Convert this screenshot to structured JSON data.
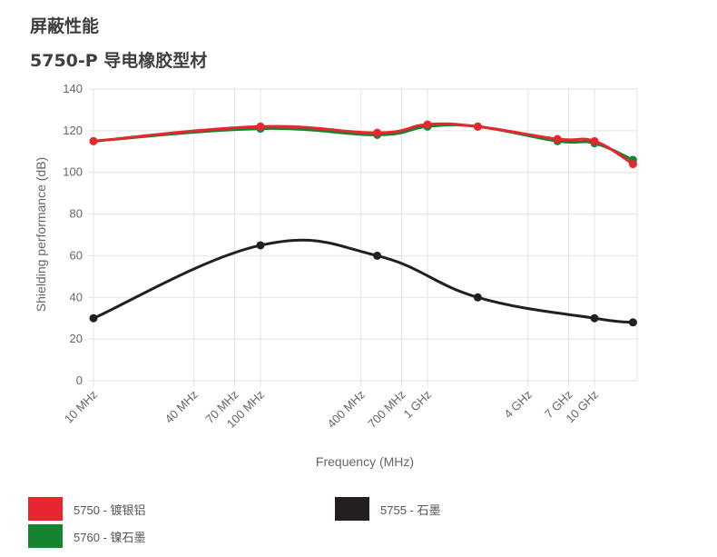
{
  "page": {
    "heading": "屏蔽性能",
    "subheading": "5750-P 导电橡胶型材"
  },
  "chart_data": {
    "type": "line",
    "title": "",
    "xlabel": "Frequency (MHz)",
    "ylabel": "Shielding performance (dB)",
    "x_scale": "log",
    "x_ticks": [
      {
        "value": 10,
        "label": "10 MHz"
      },
      {
        "value": 40,
        "label": "40 MHz"
      },
      {
        "value": 70,
        "label": "70 MHz"
      },
      {
        "value": 100,
        "label": "100 MHz"
      },
      {
        "value": 400,
        "label": "400 MHz"
      },
      {
        "value": 700,
        "label": "700 MHz"
      },
      {
        "value": 1000,
        "label": "1 GHz"
      },
      {
        "value": 4000,
        "label": "4 GHz"
      },
      {
        "value": 7000,
        "label": "7 GHz"
      },
      {
        "value": 10000,
        "label": "10 GHz"
      }
    ],
    "xlim": [
      10,
      18000
    ],
    "ylim": [
      0,
      140
    ],
    "y_ticks": [
      0,
      20,
      40,
      60,
      80,
      100,
      120,
      140
    ],
    "grid": true,
    "legend_position": "bottom",
    "series": [
      {
        "name": "5760 - 镍石墨",
        "color": "#14842f",
        "points": [
          {
            "x": 10,
            "y": 115
          },
          {
            "x": 100,
            "y": 121
          },
          {
            "x": 500,
            "y": 118
          },
          {
            "x": 1000,
            "y": 122
          },
          {
            "x": 2000,
            "y": 122
          },
          {
            "x": 6000,
            "y": 115
          },
          {
            "x": 10000,
            "y": 114
          },
          {
            "x": 17000,
            "y": 106
          }
        ]
      },
      {
        "name": "5750 - 镀银铝",
        "color": "#e8262f",
        "points": [
          {
            "x": 10,
            "y": 115
          },
          {
            "x": 100,
            "y": 122
          },
          {
            "x": 500,
            "y": 119
          },
          {
            "x": 1000,
            "y": 123
          },
          {
            "x": 2000,
            "y": 122
          },
          {
            "x": 6000,
            "y": 116
          },
          {
            "x": 10000,
            "y": 115
          },
          {
            "x": 17000,
            "y": 104
          }
        ]
      },
      {
        "name": "5755 - 石墨",
        "color": "#231f20",
        "points": [
          {
            "x": 10,
            "y": 30
          },
          {
            "x": 100,
            "y": 65
          },
          {
            "x": 500,
            "y": 60
          },
          {
            "x": 2000,
            "y": 40
          },
          {
            "x": 10000,
            "y": 30
          },
          {
            "x": 17000,
            "y": 28
          }
        ]
      }
    ]
  },
  "legend": [
    {
      "label": "5750 - 镀银铝",
      "color": "#e8262f"
    },
    {
      "label": "5760 - 镍石墨",
      "color": "#14842f"
    },
    {
      "label": "5755 - 石墨",
      "color": "#231f20"
    }
  ]
}
